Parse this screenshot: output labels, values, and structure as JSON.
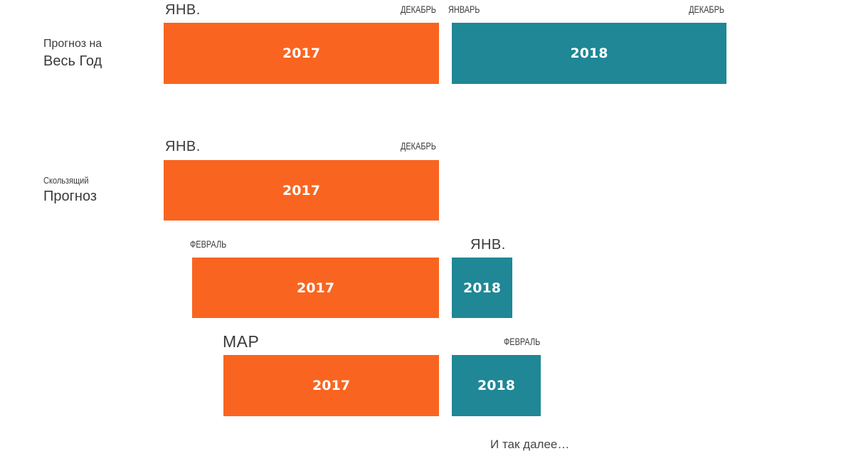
{
  "annual": {
    "label_line1": "Прогноз на",
    "label_line2": "Весь Год",
    "bar_2017": {
      "year": "2017",
      "start": "ЯНВ.",
      "end": "ДЕКАБРЬ"
    },
    "bar_2018": {
      "year": "2018",
      "start": "ЯНВАРЬ",
      "end": "ДЕКАБРЬ"
    }
  },
  "rolling": {
    "label_line1": "Скользящий",
    "label_line2": "Прогноз",
    "step1": {
      "bar_2017": {
        "year": "2017",
        "start": "ЯНВ.",
        "end": "ДЕКАБРЬ"
      }
    },
    "step2": {
      "bar_2017": {
        "year": "2017",
        "start": "ФЕВРАЛЬ"
      },
      "bar_2018": {
        "year": "2018",
        "end": "ЯНВ."
      }
    },
    "step3": {
      "bar_2017": {
        "year": "2017",
        "start": "МАР"
      },
      "bar_2018": {
        "year": "2018",
        "end": "ФЕВРАЛЬ"
      }
    }
  },
  "footer_note": "И так далее…",
  "colors": {
    "year_2017": "#f96520",
    "year_2018": "#1f8796"
  }
}
